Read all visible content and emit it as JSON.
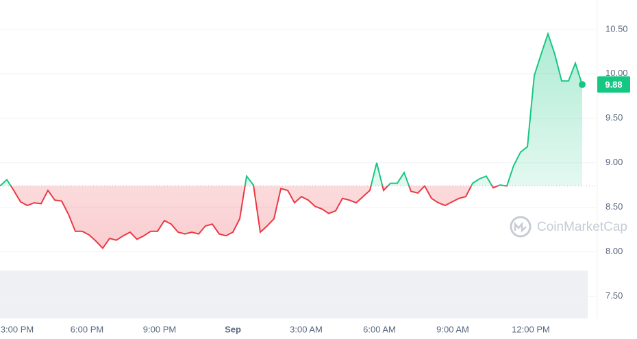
{
  "chart_data": {
    "type": "line",
    "watermark": "CoinMarketCap",
    "baseline": 8.74,
    "up_color": "#16c784",
    "down_color": "#ea3943",
    "grid": true,
    "ylim": [
      7.25,
      10.83
    ],
    "yticks": [
      {
        "value": 7.5,
        "label": "7.50"
      },
      {
        "value": 8.0,
        "label": "8.00"
      },
      {
        "value": 8.5,
        "label": "8.50"
      },
      {
        "value": 9.0,
        "label": "9.00"
      },
      {
        "value": 9.5,
        "label": "9.50"
      },
      {
        "value": 10.0,
        "label": "10.00"
      },
      {
        "value": 10.5,
        "label": "10.50"
      }
    ],
    "xlim": [
      0,
      87
    ],
    "xticks": [
      {
        "value": 2.5,
        "label": "3:00 PM"
      },
      {
        "value": 12.7,
        "label": "6:00 PM"
      },
      {
        "value": 23.3,
        "label": "9:00 PM"
      },
      {
        "value": 34,
        "label": "Sep"
      },
      {
        "value": 44.7,
        "label": "3:00 AM"
      },
      {
        "value": 55.4,
        "label": "6:00 AM"
      },
      {
        "value": 66.1,
        "label": "9:00 AM"
      },
      {
        "value": 77.5,
        "label": "12:00 PM"
      }
    ],
    "values": [
      8.74,
      8.81,
      8.69,
      8.56,
      8.52,
      8.55,
      8.54,
      8.69,
      8.58,
      8.57,
      8.42,
      8.23,
      8.23,
      8.19,
      8.12,
      8.04,
      8.15,
      8.13,
      8.18,
      8.22,
      8.14,
      8.18,
      8.23,
      8.23,
      8.35,
      8.31,
      8.22,
      8.2,
      8.22,
      8.2,
      8.29,
      8.31,
      8.2,
      8.18,
      8.22,
      8.37,
      8.85,
      8.75,
      8.22,
      8.29,
      8.37,
      8.71,
      8.69,
      8.55,
      8.62,
      8.58,
      8.51,
      8.48,
      8.43,
      8.46,
      8.6,
      8.58,
      8.55,
      8.62,
      8.69,
      9.0,
      8.69,
      8.77,
      8.77,
      8.89,
      8.68,
      8.66,
      8.74,
      8.6,
      8.55,
      8.52,
      8.56,
      8.6,
      8.62,
      8.77,
      8.82,
      8.85,
      8.72,
      8.75,
      8.74,
      8.97,
      9.12,
      9.18,
      9.98,
      10.22,
      10.45,
      10.22,
      9.92,
      9.92,
      10.12,
      9.88
    ]
  }
}
